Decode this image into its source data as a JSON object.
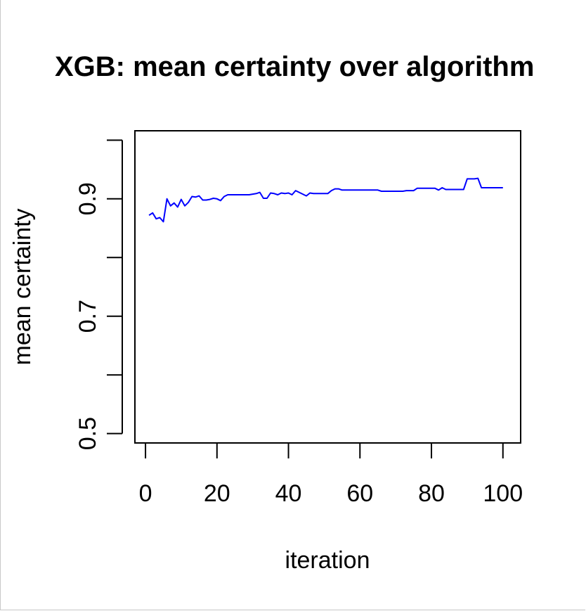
{
  "chart_data": {
    "type": "line",
    "title": "XGB: mean certainty over algorithm",
    "xlabel": "iteration",
    "ylabel": "mean certainty",
    "xlim": [
      -2.96,
      104.96
    ],
    "ylim": [
      0.484,
      1.016
    ],
    "x_ticks": [
      0,
      20,
      40,
      60,
      80,
      100
    ],
    "x_tick_labels": [
      "0",
      "20",
      "40",
      "60",
      "80",
      "100"
    ],
    "y_ticks": [
      0.5,
      0.6,
      0.7,
      0.8,
      0.9,
      1.0
    ],
    "y_tick_labels": [
      "0.5",
      "",
      "0.7",
      "",
      "0.9",
      ""
    ],
    "grid": false,
    "series": [
      {
        "color": "#0000ff",
        "x": [
          1,
          2,
          3,
          4,
          5,
          6,
          7,
          8,
          9,
          10,
          11,
          12,
          13,
          14,
          15,
          16,
          17,
          18,
          19,
          20,
          21,
          22,
          23,
          24,
          25,
          26,
          27,
          28,
          29,
          30,
          31,
          32,
          33,
          34,
          35,
          36,
          37,
          38,
          39,
          40,
          41,
          42,
          43,
          44,
          45,
          46,
          47,
          48,
          49,
          50,
          51,
          52,
          53,
          54,
          55,
          56,
          57,
          58,
          59,
          60,
          61,
          62,
          63,
          64,
          65,
          66,
          67,
          68,
          69,
          70,
          71,
          72,
          73,
          74,
          75,
          76,
          77,
          78,
          79,
          80,
          81,
          82,
          83,
          84,
          85,
          86,
          87,
          88,
          89,
          90,
          91,
          92,
          93,
          94,
          95,
          96,
          97,
          98,
          99,
          100
        ],
        "values": [
          0.872,
          0.876,
          0.866,
          0.868,
          0.861,
          0.9,
          0.888,
          0.893,
          0.886,
          0.899,
          0.888,
          0.894,
          0.904,
          0.903,
          0.905,
          0.898,
          0.898,
          0.899,
          0.901,
          0.9,
          0.897,
          0.904,
          0.907,
          0.907,
          0.907,
          0.907,
          0.907,
          0.907,
          0.907,
          0.908,
          0.909,
          0.911,
          0.901,
          0.901,
          0.91,
          0.909,
          0.907,
          0.91,
          0.909,
          0.91,
          0.907,
          0.914,
          0.911,
          0.908,
          0.905,
          0.91,
          0.909,
          0.909,
          0.909,
          0.909,
          0.909,
          0.914,
          0.917,
          0.917,
          0.915,
          0.915,
          0.915,
          0.915,
          0.915,
          0.915,
          0.915,
          0.915,
          0.915,
          0.915,
          0.915,
          0.913,
          0.913,
          0.913,
          0.913,
          0.913,
          0.913,
          0.913,
          0.914,
          0.914,
          0.914,
          0.918,
          0.918,
          0.918,
          0.918,
          0.918,
          0.918,
          0.915,
          0.919,
          0.916,
          0.916,
          0.916,
          0.916,
          0.916,
          0.916,
          0.934,
          0.934,
          0.934,
          0.935,
          0.919,
          0.919,
          0.919,
          0.919,
          0.919,
          0.919,
          0.919
        ]
      }
    ]
  }
}
